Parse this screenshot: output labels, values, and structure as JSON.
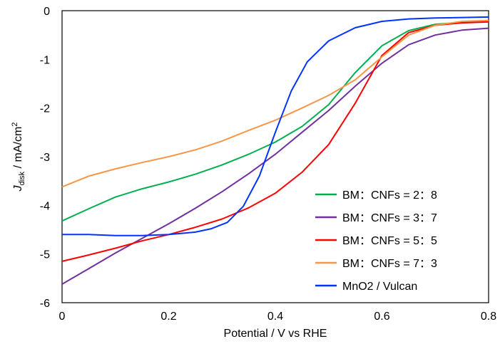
{
  "chart_data": {
    "type": "line",
    "xlabel": "Potential / V vs RHE",
    "ylabel_main": "J",
    "ylabel_sub": "disk",
    "ylabel_rest": " / mA/cm",
    "ylabel_sup": "2",
    "xlim": [
      0,
      0.8
    ],
    "ylim": [
      -6,
      0
    ],
    "xticks": [
      0,
      0.2,
      0.4,
      0.6,
      0.8
    ],
    "xtick_labels": [
      "0",
      "0.2",
      "0.4",
      "0.6",
      "0.8"
    ],
    "yticks": [
      0,
      -1,
      -2,
      -3,
      -4,
      -5,
      -6
    ],
    "ytick_labels": [
      "0",
      "-1",
      "-2",
      "-3",
      "-4",
      "-5",
      "-6"
    ],
    "grid": false,
    "legend_position": "bottom-right",
    "series": [
      {
        "name": "BM：CNFs = 2：8",
        "color": "#00b050",
        "x": [
          0,
          0.05,
          0.1,
          0.15,
          0.2,
          0.25,
          0.3,
          0.35,
          0.4,
          0.45,
          0.5,
          0.55,
          0.6,
          0.65,
          0.7,
          0.75,
          0.8
        ],
        "y": [
          -4.32,
          -4.07,
          -3.83,
          -3.66,
          -3.52,
          -3.36,
          -3.17,
          -2.95,
          -2.7,
          -2.38,
          -1.93,
          -1.27,
          -0.72,
          -0.41,
          -0.28,
          -0.24,
          -0.22
        ]
      },
      {
        "name": "BM：CNFs = 3：7",
        "color": "#7030a0",
        "x": [
          0,
          0.05,
          0.1,
          0.15,
          0.2,
          0.25,
          0.3,
          0.35,
          0.4,
          0.45,
          0.5,
          0.55,
          0.6,
          0.65,
          0.7,
          0.75,
          0.8
        ],
        "y": [
          -5.62,
          -5.3,
          -4.98,
          -4.68,
          -4.38,
          -4.06,
          -3.72,
          -3.35,
          -2.95,
          -2.5,
          -2.05,
          -1.55,
          -1.08,
          -0.7,
          -0.5,
          -0.4,
          -0.36
        ]
      },
      {
        "name": "BM：CNFs = 5：5",
        "color": "#ff0000",
        "x": [
          0,
          0.05,
          0.1,
          0.15,
          0.2,
          0.25,
          0.3,
          0.35,
          0.4,
          0.45,
          0.5,
          0.55,
          0.6,
          0.65,
          0.7,
          0.75,
          0.8
        ],
        "y": [
          -5.15,
          -5.02,
          -4.88,
          -4.73,
          -4.6,
          -4.45,
          -4.28,
          -4.05,
          -3.75,
          -3.32,
          -2.75,
          -1.9,
          -0.92,
          -0.45,
          -0.3,
          -0.25,
          -0.23
        ]
      },
      {
        "name": "BM：CNFs = 7：3",
        "color": "#f79646",
        "x": [
          0,
          0.05,
          0.1,
          0.15,
          0.2,
          0.25,
          0.3,
          0.35,
          0.4,
          0.45,
          0.5,
          0.55,
          0.6,
          0.65,
          0.7,
          0.75,
          0.8
        ],
        "y": [
          -3.62,
          -3.4,
          -3.25,
          -3.12,
          -3.0,
          -2.86,
          -2.68,
          -2.46,
          -2.25,
          -2.0,
          -1.74,
          -1.42,
          -0.95,
          -0.5,
          -0.3,
          -0.22,
          -0.2
        ]
      },
      {
        "name": "MnO2 / Vulcan",
        "color": "#0033ff",
        "x": [
          0,
          0.05,
          0.1,
          0.15,
          0.2,
          0.25,
          0.28,
          0.31,
          0.34,
          0.37,
          0.4,
          0.43,
          0.46,
          0.5,
          0.55,
          0.6,
          0.65,
          0.7,
          0.75,
          0.8
        ],
        "y": [
          -4.6,
          -4.6,
          -4.62,
          -4.62,
          -4.6,
          -4.55,
          -4.48,
          -4.35,
          -4.02,
          -3.4,
          -2.5,
          -1.65,
          -1.05,
          -0.62,
          -0.35,
          -0.22,
          -0.17,
          -0.15,
          -0.14,
          -0.13
        ]
      }
    ]
  }
}
